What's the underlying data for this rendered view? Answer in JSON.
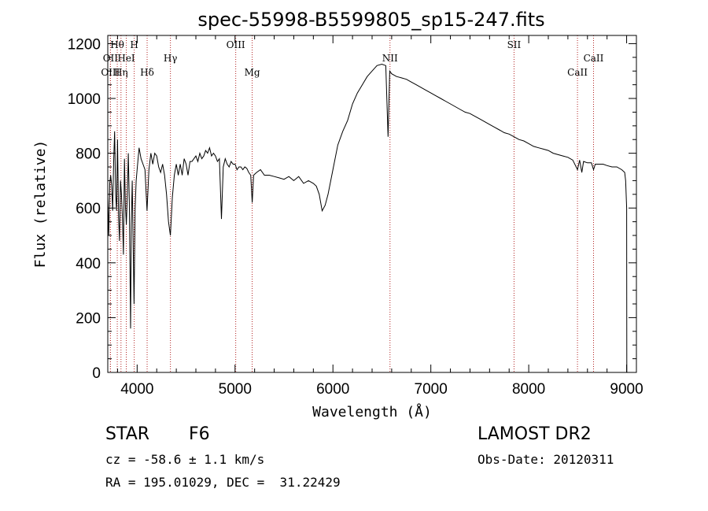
{
  "chart_data": {
    "type": "line",
    "title": "spec-55998-B5599805_sp15-247.fits",
    "xlabel": "Wavelength (Å)",
    "ylabel": "Flux (relative)",
    "xlim": [
      3700,
      9100
    ],
    "ylim": [
      0,
      1230
    ],
    "xticks": [
      4000,
      5000,
      6000,
      7000,
      8000,
      9000
    ],
    "yticks": [
      0,
      200,
      400,
      600,
      800,
      1000,
      1200
    ],
    "grid": false,
    "series": [
      {
        "values": [
          [
            3700,
            640
          ],
          [
            3710,
            500
          ],
          [
            3720,
            690
          ],
          [
            3730,
            720
          ],
          [
            3740,
            680
          ],
          [
            3750,
            590
          ],
          [
            3760,
            770
          ],
          [
            3770,
            880
          ],
          [
            3780,
            650
          ],
          [
            3790,
            590
          ],
          [
            3800,
            850
          ],
          [
            3810,
            570
          ],
          [
            3820,
            480
          ],
          [
            3830,
            700
          ],
          [
            3840,
            650
          ],
          [
            3850,
            560
          ],
          [
            3860,
            430
          ],
          [
            3870,
            780
          ],
          [
            3880,
            610
          ],
          [
            3890,
            540
          ],
          [
            3900,
            650
          ],
          [
            3910,
            800
          ],
          [
            3920,
            620
          ],
          [
            3933,
            160
          ],
          [
            3940,
            540
          ],
          [
            3950,
            700
          ],
          [
            3968,
            250
          ],
          [
            3980,
            600
          ],
          [
            3990,
            700
          ],
          [
            4000,
            740
          ],
          [
            4020,
            820
          ],
          [
            4040,
            780
          ],
          [
            4060,
            760
          ],
          [
            4080,
            740
          ],
          [
            4101,
            590
          ],
          [
            4120,
            740
          ],
          [
            4140,
            800
          ],
          [
            4160,
            760
          ],
          [
            4180,
            800
          ],
          [
            4200,
            790
          ],
          [
            4220,
            750
          ],
          [
            4240,
            730
          ],
          [
            4260,
            760
          ],
          [
            4280,
            720
          ],
          [
            4300,
            650
          ],
          [
            4320,
            550
          ],
          [
            4340,
            500
          ],
          [
            4360,
            640
          ],
          [
            4380,
            720
          ],
          [
            4400,
            760
          ],
          [
            4420,
            720
          ],
          [
            4440,
            760
          ],
          [
            4460,
            720
          ],
          [
            4480,
            780
          ],
          [
            4500,
            760
          ],
          [
            4520,
            720
          ],
          [
            4540,
            770
          ],
          [
            4560,
            770
          ],
          [
            4580,
            780
          ],
          [
            4600,
            790
          ],
          [
            4620,
            770
          ],
          [
            4640,
            800
          ],
          [
            4660,
            780
          ],
          [
            4680,
            790
          ],
          [
            4700,
            810
          ],
          [
            4720,
            800
          ],
          [
            4740,
            820
          ],
          [
            4760,
            790
          ],
          [
            4780,
            800
          ],
          [
            4800,
            790
          ],
          [
            4820,
            770
          ],
          [
            4840,
            780
          ],
          [
            4861,
            560
          ],
          [
            4880,
            750
          ],
          [
            4900,
            780
          ],
          [
            4920,
            760
          ],
          [
            4940,
            750
          ],
          [
            4960,
            770
          ],
          [
            4980,
            760
          ],
          [
            5000,
            760
          ],
          [
            5020,
            740
          ],
          [
            5040,
            750
          ],
          [
            5060,
            750
          ],
          [
            5080,
            740
          ],
          [
            5100,
            750
          ],
          [
            5120,
            745
          ],
          [
            5140,
            730
          ],
          [
            5160,
            720
          ],
          [
            5175,
            620
          ],
          [
            5190,
            720
          ],
          [
            5220,
            730
          ],
          [
            5260,
            740
          ],
          [
            5300,
            720
          ],
          [
            5350,
            720
          ],
          [
            5400,
            715
          ],
          [
            5450,
            710
          ],
          [
            5500,
            705
          ],
          [
            5550,
            715
          ],
          [
            5600,
            700
          ],
          [
            5650,
            715
          ],
          [
            5700,
            690
          ],
          [
            5750,
            700
          ],
          [
            5800,
            690
          ],
          [
            5830,
            680
          ],
          [
            5860,
            650
          ],
          [
            5890,
            590
          ],
          [
            5920,
            610
          ],
          [
            5950,
            650
          ],
          [
            6000,
            740
          ],
          [
            6050,
            830
          ],
          [
            6100,
            880
          ],
          [
            6150,
            920
          ],
          [
            6200,
            980
          ],
          [
            6250,
            1020
          ],
          [
            6300,
            1050
          ],
          [
            6350,
            1080
          ],
          [
            6400,
            1100
          ],
          [
            6450,
            1120
          ],
          [
            6500,
            1125
          ],
          [
            6540,
            1120
          ],
          [
            6563,
            860
          ],
          [
            6580,
            1100
          ],
          [
            6600,
            1090
          ],
          [
            6650,
            1080
          ],
          [
            6700,
            1075
          ],
          [
            6750,
            1070
          ],
          [
            6800,
            1060
          ],
          [
            6850,
            1050
          ],
          [
            6900,
            1040
          ],
          [
            6950,
            1030
          ],
          [
            7000,
            1020
          ],
          [
            7050,
            1010
          ],
          [
            7100,
            1000
          ],
          [
            7150,
            990
          ],
          [
            7200,
            980
          ],
          [
            7250,
            970
          ],
          [
            7300,
            960
          ],
          [
            7350,
            950
          ],
          [
            7400,
            945
          ],
          [
            7450,
            935
          ],
          [
            7500,
            925
          ],
          [
            7550,
            915
          ],
          [
            7600,
            905
          ],
          [
            7650,
            895
          ],
          [
            7700,
            885
          ],
          [
            7750,
            875
          ],
          [
            7800,
            870
          ],
          [
            7850,
            860
          ],
          [
            7900,
            850
          ],
          [
            7950,
            845
          ],
          [
            8000,
            835
          ],
          [
            8050,
            825
          ],
          [
            8100,
            820
          ],
          [
            8150,
            815
          ],
          [
            8200,
            810
          ],
          [
            8250,
            800
          ],
          [
            8300,
            795
          ],
          [
            8350,
            790
          ],
          [
            8400,
            785
          ],
          [
            8450,
            775
          ],
          [
            8498,
            740
          ],
          [
            8520,
            775
          ],
          [
            8542,
            730
          ],
          [
            8560,
            770
          ],
          [
            8600,
            765
          ],
          [
            8640,
            765
          ],
          [
            8662,
            740
          ],
          [
            8680,
            760
          ],
          [
            8720,
            760
          ],
          [
            8760,
            760
          ],
          [
            8800,
            755
          ],
          [
            8850,
            750
          ],
          [
            8900,
            750
          ],
          [
            8950,
            740
          ],
          [
            8980,
            730
          ],
          [
            8990,
            700
          ],
          [
            9000,
            600
          ],
          [
            9002,
            0
          ]
        ]
      }
    ],
    "lines": [
      {
        "label": "Hθ",
        "x": 3797,
        "row": 1
      },
      {
        "label": "H",
        "x": 3970,
        "row": 1
      },
      {
        "label": "OII",
        "x": 3727,
        "row": 2
      },
      {
        "label": "HeI",
        "x": 3889,
        "row": 2
      },
      {
        "label": "Hγ",
        "x": 4340,
        "row": 2
      },
      {
        "label": "OIII",
        "x": 3727,
        "row": 3
      },
      {
        "label": "Hη",
        "x": 3835,
        "row": 3
      },
      {
        "label": "Hδ",
        "x": 4102,
        "row": 3
      },
      {
        "label": "OIII",
        "x": 5007,
        "row": 1
      },
      {
        "label": "Mg",
        "x": 5175,
        "row": 3
      },
      {
        "label": "NII",
        "x": 6583,
        "row": 2
      },
      {
        "label": "SII",
        "x": 7850,
        "row": 1
      },
      {
        "label": "CaII",
        "x": 8662,
        "row": 2
      },
      {
        "label": "CaII",
        "x": 8498,
        "row": 3
      }
    ]
  },
  "info": {
    "object_class": "STAR",
    "subclass": "F6",
    "survey": "LAMOST DR2",
    "cz": "cz = -58.6 ± 1.1 km/s",
    "obs_date": "Obs-Date: 20120311",
    "coords": "RA = 195.01029, DEC =  31.22429"
  }
}
